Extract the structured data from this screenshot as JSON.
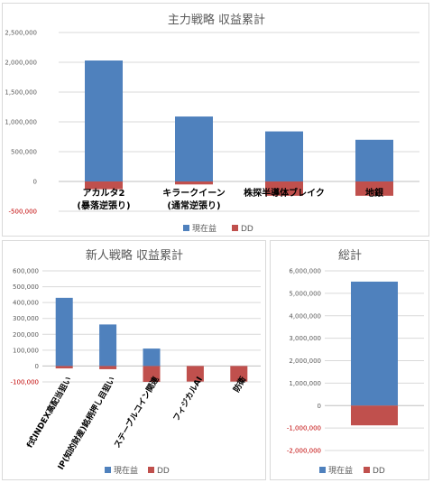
{
  "colors": {
    "profit": "#4f81bd",
    "drawdown": "#c0504d",
    "grid": "#d9d9d9",
    "axis": "#bfbfbf",
    "negative_tick": "#c00000"
  },
  "chart_data": [
    {
      "type": "bar",
      "title": "主力戦略 収益累計",
      "categories": [
        [
          "アカルタ2",
          "(暴落逆張り)"
        ],
        [
          "キラークイーン",
          "(通常逆張り)"
        ],
        [
          "株探半導体ブレイク"
        ],
        [
          "地銀"
        ]
      ],
      "series": [
        {
          "name": "現在益",
          "values": [
            2030000,
            1090000,
            840000,
            700000
          ]
        },
        {
          "name": "DD",
          "values": [
            -130000,
            -50000,
            -240000,
            -240000
          ]
        }
      ],
      "ylim": [
        -500000,
        2500000
      ],
      "yticks": [
        "2,500,000",
        "2,000,000",
        "1,500,000",
        "1,000,000",
        "500,000",
        "0",
        "-500,000"
      ],
      "grid": true,
      "legend": "bottom"
    },
    {
      "type": "bar",
      "title": "新人戦略 収益累計",
      "categories": [
        "f式INDEX高配当狙い",
        "IP(知的財産)銘柄押し目狙い",
        "ステーブルコイン関連",
        "フィジカルAI",
        "防衛"
      ],
      "series": [
        {
          "name": "現在益",
          "values": [
            430000,
            262000,
            110000,
            0,
            0
          ]
        },
        {
          "name": "DD",
          "values": [
            -15000,
            -20000,
            -100000,
            -98000,
            -98000
          ]
        }
      ],
      "ylim": [
        -100000,
        600000
      ],
      "yticks": [
        "600,000",
        "500,000",
        "400,000",
        "300,000",
        "200,000",
        "100,000",
        "0",
        "-100,000"
      ],
      "grid": true,
      "legend": "bottom"
    },
    {
      "type": "bar",
      "title": "総計",
      "categories": [
        ""
      ],
      "series": [
        {
          "name": "現在益",
          "values": [
            5520000
          ]
        },
        {
          "name": "DD",
          "values": [
            -880000
          ]
        }
      ],
      "ylim": [
        -2000000,
        6000000
      ],
      "yticks": [
        "6,000,000",
        "5,000,000",
        "4,000,000",
        "3,000,000",
        "2,000,000",
        "1,000,000",
        "0",
        "-1,000,000",
        "-2,000,000"
      ],
      "grid": true,
      "legend": "bottom"
    }
  ]
}
